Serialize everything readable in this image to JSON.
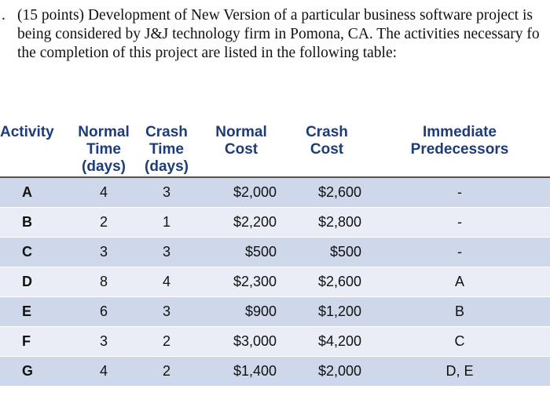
{
  "problem": {
    "bullet": ".",
    "lines": [
      "(15 points) Development of New Version of a particular business software project is",
      "being considered by J&J technology firm in Pomona, CA. The activities necessary fo",
      "the completion of this project are listed in the following table:"
    ]
  },
  "table": {
    "headers": {
      "activity": "Activity",
      "normal_time": [
        "Normal",
        "Time",
        "(days)"
      ],
      "crash_time": [
        "Crash",
        "Time",
        "(days)"
      ],
      "normal_cost": [
        "Normal",
        "Cost"
      ],
      "crash_cost": [
        "Crash",
        "Cost"
      ],
      "predecessors": [
        "Immediate",
        "Predecessors"
      ]
    },
    "rows": [
      {
        "activity": "A",
        "normal_time": "4",
        "crash_time": "3",
        "normal_cost": "$2,000",
        "crash_cost": "$2,600",
        "predecessors": "-"
      },
      {
        "activity": "B",
        "normal_time": "2",
        "crash_time": "1",
        "normal_cost": "$2,200",
        "crash_cost": "$2,800",
        "predecessors": "-"
      },
      {
        "activity": "C",
        "normal_time": "3",
        "crash_time": "3",
        "normal_cost": "$500",
        "crash_cost": "$500",
        "predecessors": "-"
      },
      {
        "activity": "D",
        "normal_time": "8",
        "crash_time": "4",
        "normal_cost": "$2,300",
        "crash_cost": "$2,600",
        "predecessors": "A"
      },
      {
        "activity": "E",
        "normal_time": "6",
        "crash_time": "3",
        "normal_cost": "$900",
        "crash_cost": "$1,200",
        "predecessors": "B"
      },
      {
        "activity": "F",
        "normal_time": "3",
        "crash_time": "2",
        "normal_cost": "$3,000",
        "crash_cost": "$4,200",
        "predecessors": "C"
      },
      {
        "activity": "G",
        "normal_time": "4",
        "crash_time": "2",
        "normal_cost": "$1,400",
        "crash_cost": "$2,000",
        "predecessors": "D, E"
      }
    ]
  }
}
